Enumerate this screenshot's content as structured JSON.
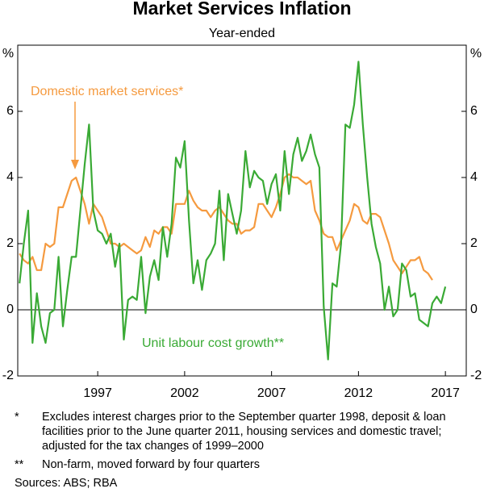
{
  "chart_data": {
    "type": "line",
    "title": "Market Services Inflation",
    "subtitle": "Year-ended",
    "y_unit": "%",
    "y2_unit": "%",
    "x": [
      1992.5,
      1992.75,
      1993,
      1993.25,
      1993.5,
      1993.75,
      1994,
      1994.25,
      1994.5,
      1994.75,
      1995,
      1995.25,
      1995.5,
      1995.75,
      1996,
      1996.25,
      1996.5,
      1996.75,
      1997,
      1997.25,
      1997.5,
      1997.75,
      1998,
      1998.25,
      1998.5,
      1998.75,
      1999,
      1999.25,
      1999.5,
      1999.75,
      2000,
      2000.25,
      2000.5,
      2000.75,
      2001,
      2001.25,
      2001.5,
      2001.75,
      2002,
      2002.25,
      2002.5,
      2002.75,
      2003,
      2003.25,
      2003.5,
      2003.75,
      2004,
      2004.25,
      2004.5,
      2004.75,
      2005,
      2005.25,
      2005.5,
      2005.75,
      2006,
      2006.25,
      2006.5,
      2006.75,
      2007,
      2007.25,
      2007.5,
      2007.75,
      2008,
      2008.25,
      2008.5,
      2008.75,
      2009,
      2009.25,
      2009.5,
      2009.75,
      2010,
      2010.25,
      2010.5,
      2010.75,
      2011,
      2011.25,
      2011.5,
      2011.75,
      2012,
      2012.25,
      2012.5,
      2012.75,
      2013,
      2013.25,
      2013.5,
      2013.75,
      2014,
      2014.25,
      2014.5,
      2014.75,
      2015,
      2015.25,
      2015.5,
      2015.75,
      2016,
      2016.25,
      2016.5,
      2016.75,
      2017
    ],
    "series": [
      {
        "name": "Domestic market services*",
        "color": "#f59a3f",
        "values": [
          1.7,
          1.5,
          1.4,
          1.6,
          1.2,
          1.2,
          2.0,
          1.9,
          2.0,
          3.1,
          3.1,
          3.5,
          3.9,
          4.0,
          3.6,
          3.2,
          2.6,
          3.2,
          3.0,
          2.8,
          2.4,
          2.0,
          2.0,
          1.9,
          2.0,
          1.9,
          1.8,
          1.7,
          1.8,
          2.2,
          1.9,
          2.4,
          2.3,
          2.5,
          2.5,
          2.3,
          3.2,
          3.2,
          3.2,
          3.6,
          3.3,
          3.1,
          3.0,
          3.0,
          2.8,
          3.0,
          3.1,
          2.9,
          2.7,
          2.6,
          2.6,
          2.3,
          2.4,
          2.4,
          2.5,
          3.2,
          3.2,
          3.0,
          2.8,
          3.1,
          3.5,
          4.0,
          4.1,
          4.0,
          4.0,
          3.9,
          3.8,
          3.9,
          3.0,
          2.7,
          2.3,
          2.2,
          2.2,
          1.8,
          2.1,
          2.4,
          2.7,
          3.2,
          3.1,
          2.7,
          2.6,
          2.9,
          2.9,
          2.8,
          2.4,
          2.0,
          1.5,
          1.3,
          1.1,
          1.3,
          1.5,
          1.5,
          1.6,
          1.2,
          1.1,
          0.9,
          null,
          null,
          null
        ]
      },
      {
        "name": "Unit labour cost growth**",
        "color": "#3aaa35",
        "values": [
          0.8,
          2.0,
          3.0,
          -1.0,
          0.5,
          -0.5,
          -1.0,
          -0.1,
          0,
          1.6,
          -0.5,
          0.6,
          1.6,
          1.6,
          3.0,
          4.4,
          5.6,
          3.0,
          2.4,
          2.3,
          2.0,
          2.3,
          1.3,
          2.0,
          -0.9,
          0.3,
          0.4,
          0.3,
          1.6,
          -0.1,
          1.0,
          1.5,
          0.9,
          2.5,
          1.6,
          2.6,
          4.6,
          4.3,
          5.1,
          2.7,
          0.8,
          1.5,
          0.6,
          1.5,
          1.7,
          2.0,
          3.6,
          1.5,
          3.5,
          2.9,
          2.3,
          3.0,
          4.8,
          3.7,
          4.2,
          4.0,
          3.9,
          3.2,
          3.8,
          4.1,
          3.0,
          4.8,
          3.5,
          4.7,
          5.2,
          4.5,
          4.8,
          5.3,
          4.7,
          4.3,
          0.1,
          -1.5,
          0.8,
          0.7,
          2.0,
          5.6,
          5.5,
          6.2,
          7.5,
          5.6,
          4.0,
          2.6,
          1.9,
          1.4,
          0.0,
          0.7,
          -0.2,
          0,
          1.4,
          1.2,
          0.4,
          0.5,
          -0.3,
          -0.4,
          -0.5,
          0.2,
          0.4,
          0.2,
          0.7
        ]
      }
    ],
    "xlim": [
      1992.4,
      2018.2
    ],
    "xticks": [
      1997,
      2002,
      2007,
      2012,
      2017
    ],
    "ylim": [
      -2,
      8
    ],
    "yticks": [
      -2,
      0,
      2,
      4,
      6
    ],
    "y2lim": [
      -2,
      8
    ],
    "y2ticks": [
      -2,
      0,
      2,
      4,
      6
    ]
  },
  "notes": [
    {
      "marker": "*",
      "text": "Excludes interest charges prior to the September quarter 1998, deposit & loan facilities prior to the June quarter 2011, housing services and domestic travel; adjusted for the tax changes of 1999–2000"
    },
    {
      "marker": "**",
      "text": "Non-farm, moved forward by four quarters"
    }
  ],
  "sources": "Sources:  ABS; RBA"
}
